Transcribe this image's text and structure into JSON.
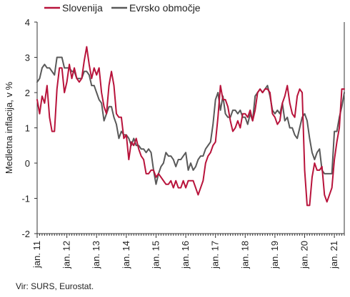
{
  "source": "Vir: SURS, Eurostat.",
  "chart_data": {
    "type": "line",
    "title": "",
    "xlabel": "",
    "ylabel": "Medletna inflacija, v %",
    "ylim": [
      -2,
      4
    ],
    "yticks": [
      -2,
      -1,
      0,
      1,
      2,
      3,
      4
    ],
    "xlim": [
      "2011-01",
      "2021-05"
    ],
    "xtick_labels": [
      "jan. 11",
      "jan. 12",
      "jan. 13",
      "jan. 14",
      "jan. 15",
      "jan. 16",
      "jan. 17",
      "jan. 18",
      "jan. 19",
      "jan. 20",
      "jan. 21"
    ],
    "x_start": "2011-01",
    "x_step": "month",
    "grid": false,
    "legend_position": "top",
    "series": [
      {
        "name": "Slovenija",
        "color": "#b8133b",
        "values": [
          1.8,
          1.4,
          1.9,
          1.7,
          2.2,
          1.3,
          0.9,
          0.9,
          2.1,
          2.7,
          2.7,
          2.0,
          2.3,
          2.8,
          2.4,
          2.7,
          2.4,
          2.3,
          2.4,
          2.9,
          3.3,
          2.8,
          2.4,
          2.7,
          2.5,
          2.7,
          2.0,
          1.6,
          1.4,
          2.2,
          2.6,
          2.2,
          1.4,
          1.3,
          1.3,
          0.7,
          0.8,
          0.1,
          0.6,
          0.5,
          0.7,
          0.4,
          0.2,
          0.1,
          -0.3,
          -0.3,
          -0.2,
          -0.2,
          -0.4,
          -0.3,
          -0.4,
          -0.5,
          -0.6,
          -0.6,
          -0.5,
          -0.7,
          -0.5,
          -0.7,
          -0.7,
          -0.5,
          -0.7,
          -0.5,
          -0.5,
          -0.5,
          -0.7,
          -0.9,
          -0.7,
          -0.5,
          0.0,
          0.2,
          0.3,
          0.5,
          0.6,
          1.3,
          2.2,
          1.8,
          1.8,
          1.6,
          1.2,
          0.9,
          1.0,
          1.2,
          1.0,
          1.4,
          1.4,
          1.3,
          1.5,
          1.2,
          1.5,
          2.0,
          2.1,
          2.0,
          2.1,
          2.1,
          2.0,
          1.4,
          1.3,
          1.1,
          1.2,
          1.7,
          1.9,
          2.2,
          1.7,
          1.4,
          1.3,
          1.9,
          2.1,
          2.0,
          -0.2,
          -1.2,
          -1.2,
          -0.4,
          0.0,
          -0.2,
          -0.2,
          -0.1,
          -0.9,
          -1.1,
          -0.9,
          -0.7,
          0.1,
          0.6,
          1.0,
          2.1,
          2.1
        ]
      },
      {
        "name": "Evrsko območje",
        "color": "#595959",
        "values": [
          2.3,
          2.4,
          2.7,
          2.8,
          2.7,
          2.7,
          2.6,
          2.5,
          3.0,
          3.0,
          3.0,
          2.7,
          2.7,
          2.7,
          2.6,
          2.6,
          2.4,
          2.4,
          2.4,
          2.6,
          2.6,
          2.5,
          2.2,
          2.2,
          2.0,
          1.8,
          1.7,
          1.2,
          1.4,
          1.6,
          1.6,
          1.3,
          1.1,
          0.7,
          0.9,
          0.8,
          0.8,
          0.7,
          0.5,
          0.7,
          0.5,
          0.5,
          0.4,
          0.4,
          0.3,
          0.4,
          0.3,
          -0.2,
          -0.6,
          -0.3,
          -0.1,
          0.0,
          0.3,
          0.2,
          0.2,
          0.1,
          -0.1,
          0.1,
          0.1,
          0.2,
          0.3,
          -0.2,
          0.0,
          -0.2,
          -0.1,
          0.1,
          0.2,
          0.2,
          0.4,
          0.5,
          0.6,
          1.1,
          1.8,
          2.0,
          1.5,
          1.9,
          1.4,
          1.3,
          1.3,
          1.5,
          1.5,
          1.4,
          1.5,
          1.3,
          1.3,
          1.1,
          1.4,
          1.2,
          1.9,
          2.0,
          2.1,
          2.0,
          2.1,
          2.2,
          1.9,
          1.5,
          1.4,
          1.5,
          1.4,
          1.7,
          1.2,
          1.3,
          1.0,
          1.0,
          0.8,
          0.7,
          1.0,
          1.3,
          1.4,
          1.2,
          0.7,
          0.3,
          0.1,
          0.3,
          0.4,
          -0.2,
          -0.3,
          -0.3,
          -0.3,
          -0.3,
          0.9,
          0.9,
          1.3,
          1.6,
          2.0
        ]
      }
    ]
  }
}
